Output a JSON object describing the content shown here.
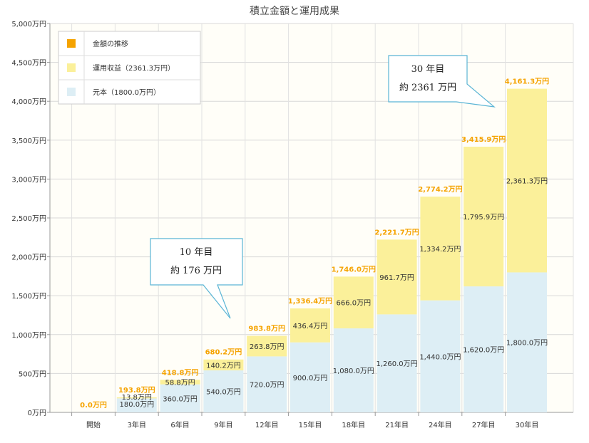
{
  "chart_data": {
    "type": "bar",
    "stacked": true,
    "title": "積立金額と運用成果",
    "categories": [
      "開始",
      "3年目",
      "6年目",
      "9年目",
      "12年目",
      "15年目",
      "18年目",
      "21年目",
      "24年目",
      "27年目",
      "30年目"
    ],
    "series": [
      {
        "name": "元本（1800.0万円）",
        "color": "#ddeef5",
        "values": [
          0,
          180,
          360,
          540,
          720,
          900,
          1080,
          1260,
          1440,
          1620,
          1800
        ],
        "labels": [
          "",
          "180.0万円",
          "360.0万円",
          "540.0万円",
          "720.0万円",
          "900.0万円",
          "1,080.0万円",
          "1,260.0万円",
          "1,440.0万円",
          "1,620.0万円",
          "1,800.0万円"
        ]
      },
      {
        "name": "運用収益（2361.3万円）",
        "color": "#fbf09a",
        "values": [
          0,
          13.8,
          58.8,
          140.2,
          263.8,
          436.4,
          666.0,
          961.7,
          1334.2,
          1795.9,
          2361.3
        ],
        "labels": [
          "",
          "13.8万円",
          "58.8万円",
          "140.2万円",
          "263.8万円",
          "436.4万円",
          "666.0万円",
          "961.7万円",
          "1,334.2万円",
          "1,795.9万円",
          "2,361.3万円"
        ]
      }
    ],
    "totals": {
      "name": "金額の推移",
      "color": "#f5a300",
      "values": [
        0,
        193.8,
        418.8,
        680.2,
        983.8,
        1336.4,
        1746.0,
        2221.7,
        2774.2,
        3415.9,
        4161.3
      ],
      "labels": [
        "0.0万円",
        "193.8万円",
        "418.8万円",
        "680.2万円",
        "983.8万円",
        "1,336.4万円",
        "1,746.0万円",
        "2,221.7万円",
        "2,774.2万円",
        "3,415.9万円",
        "4,161.3万円"
      ]
    },
    "yticks": [
      {
        "v": 0,
        "label": "0万円"
      },
      {
        "v": 500,
        "label": "500万円"
      },
      {
        "v": 1000,
        "label": "1,000万円"
      },
      {
        "v": 1500,
        "label": "1,500万円"
      },
      {
        "v": 2000,
        "label": "2,000万円"
      },
      {
        "v": 2500,
        "label": "2,500万円"
      },
      {
        "v": 3000,
        "label": "3,000万円"
      },
      {
        "v": 3500,
        "label": "3,500万円"
      },
      {
        "v": 4000,
        "label": "4,000万円"
      },
      {
        "v": 4500,
        "label": "4,500万円"
      },
      {
        "v": 5000,
        "label": "5,000万円"
      }
    ],
    "ylim": [
      0,
      5000
    ],
    "grid": true,
    "legend_position": "top-left",
    "legend": [
      "金額の推移",
      "運用収益（2361.3万円）",
      "元本（1800.0万円）"
    ],
    "callouts": [
      {
        "lines": [
          "10 年目",
          "約 176 万円"
        ]
      },
      {
        "lines": [
          "30 年目",
          "約 2361 万円"
        ]
      }
    ]
  }
}
